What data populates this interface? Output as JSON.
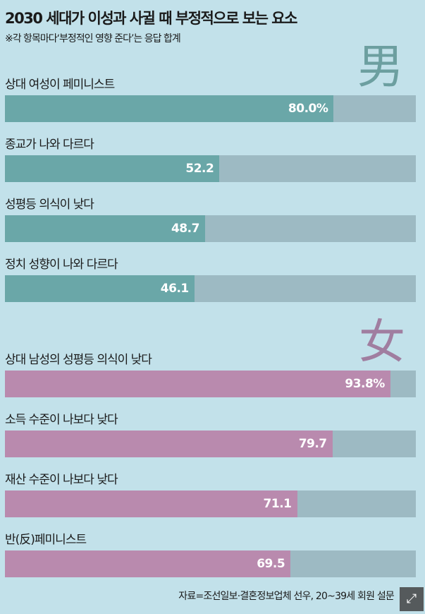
{
  "chart_data": {
    "type": "bar",
    "orientation": "horizontal",
    "title": "2030 세대가 이성과 사귈 때 부정적으로 보는 요소",
    "subtitle": "※각 항목마다‘부정적인 영향 준다’는 응답 합계",
    "xlim": [
      0,
      100
    ],
    "unit": "%",
    "grid": false,
    "groups": [
      {
        "name": "男",
        "color": "#6aa7a8",
        "categories": [
          "상대 여성이 페미니스트",
          "종교가 나와 다르다",
          "성평등 의식이 낮다",
          "정치 성향이 나와 다르다"
        ],
        "values": [
          80.0,
          52.2,
          48.7,
          46.1
        ],
        "value_labels": [
          "80.0%",
          "52.2",
          "48.7",
          "46.1"
        ]
      },
      {
        "name": "女",
        "color": "#b98aae",
        "categories": [
          "상대 남성의 성평등 의식이 낮다",
          "소득 수준이 나보다 낮다",
          "재산 수준이 나보다 낮다",
          "반(反)페미니스트"
        ],
        "values": [
          93.8,
          79.7,
          71.1,
          69.5
        ],
        "value_labels": [
          "93.8%",
          "79.7",
          "71.1",
          "69.5"
        ]
      }
    ],
    "track_color": "#9dbac3",
    "source": "자료=조선일보·결혼정보업체 선우, 20~39세 회원 설문"
  },
  "overlay": {
    "expand_icon": "expand-arrows-icon"
  }
}
